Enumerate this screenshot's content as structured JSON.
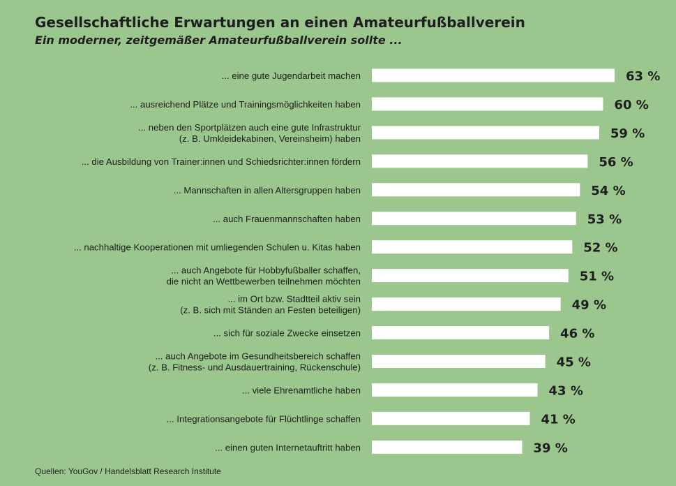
{
  "chart_data": {
    "type": "bar",
    "orientation": "horizontal",
    "title": "Gesellschaftliche Erwartungen an einen Amateurfußballverein",
    "subtitle": "Ein moderner, zeitgemäßer Amateurfußballverein sollte ...",
    "unit": "%",
    "xlim": [
      0,
      63
    ],
    "categories": [
      [
        "... eine gute Jugendarbeit machen"
      ],
      [
        "... ausreichend Plätze und Trainingsmöglichkeiten haben"
      ],
      [
        "... neben den Sportplätzen auch eine gute Infrastruktur",
        "(z. B. Umkleidekabinen, Vereinsheim) haben"
      ],
      [
        "... die Ausbildung von Trainer:innen und Schiedsrichter:innen fördern"
      ],
      [
        "... Mannschaften in allen Altersgruppen haben"
      ],
      [
        "... auch Frauenmannschaften haben"
      ],
      [
        "... nachhaltige Kooperationen mit umliegenden Schulen u. Kitas haben"
      ],
      [
        "... auch Angebote für Hobbyfußballer schaffen,",
        "die nicht an Wettbewerben teilnehmen möchten"
      ],
      [
        "... im Ort bzw. Stadtteil aktiv sein",
        "(z. B. sich mit Ständen an Festen beteiligen)"
      ],
      [
        "... sich für soziale Zwecke einsetzen"
      ],
      [
        "... auch Angebote im Gesundheitsbereich schaffen",
        "(z. B. Fitness- und Ausdauertraining, Rückenschule)"
      ],
      [
        "... viele Ehrenamtliche haben"
      ],
      [
        "... Integrationsangebote für Flüchtlinge schaffen"
      ],
      [
        "... einen guten Internetauftritt haben"
      ]
    ],
    "values": [
      63,
      60,
      59,
      56,
      54,
      53,
      52,
      51,
      49,
      46,
      45,
      43,
      41,
      39
    ],
    "bar_color": "#ffffff",
    "background_color": "#9bc78e"
  },
  "source": "Quellen: YouGov / Handelsblatt Research Institute"
}
